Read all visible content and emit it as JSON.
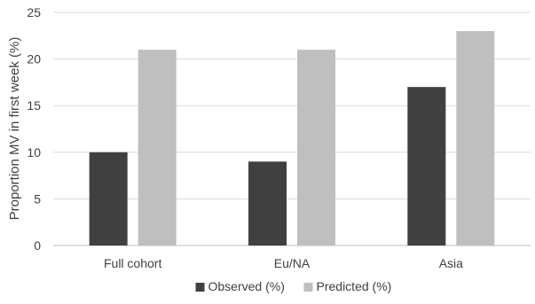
{
  "chart_data": {
    "type": "bar",
    "title": "",
    "xlabel": "",
    "ylabel": "Proportion MV in first week (%)",
    "ylim": [
      0,
      25
    ],
    "yticks": [
      0,
      5,
      10,
      15,
      20,
      25
    ],
    "categories": [
      "Full cohort",
      "Eu/NA",
      "Asia"
    ],
    "series": [
      {
        "name": "Observed (%)",
        "values": [
          10,
          9,
          17
        ],
        "color": "#404040"
      },
      {
        "name": "Predicted (%)",
        "values": [
          21,
          21,
          23
        ],
        "color": "#bfbfbf"
      }
    ],
    "grid": true,
    "legend_position": "bottom"
  }
}
